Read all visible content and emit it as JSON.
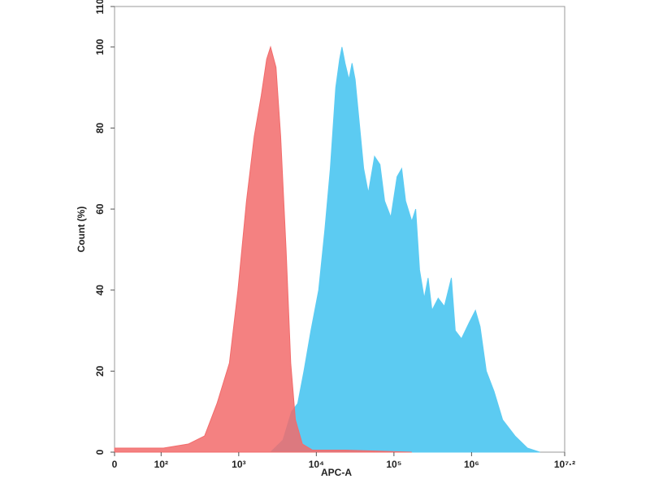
{
  "chart_data": {
    "type": "area",
    "xlabel": "APC-A",
    "ylabel": "Count (%)",
    "xlim": [
      1.4,
      7.2
    ],
    "xticks": [
      {
        "value": 1.4,
        "label": "0"
      },
      {
        "value": 2,
        "label": "10²"
      },
      {
        "value": 3,
        "label": "10³"
      },
      {
        "value": 4,
        "label": "10⁴"
      },
      {
        "value": 5,
        "label": "10⁵"
      },
      {
        "value": 6,
        "label": "10⁶"
      },
      {
        "value": 7.2,
        "label": "10⁷·²"
      }
    ],
    "ylim": [
      0,
      110
    ],
    "yticks": [
      0,
      20,
      40,
      60,
      80,
      100,
      110
    ],
    "series": [
      {
        "color": "#5ccbf2",
        "x": [
          3.41,
          3.57,
          3.68,
          3.76,
          3.84,
          3.93,
          4.03,
          4.11,
          4.18,
          4.25,
          4.3,
          4.33,
          4.37,
          4.42,
          4.46,
          4.5,
          4.56,
          4.61,
          4.67,
          4.75,
          4.82,
          4.88,
          4.96,
          5.04,
          5.1,
          5.15,
          5.23,
          5.28,
          5.33,
          5.39,
          5.44,
          5.49,
          5.57,
          5.65,
          5.74,
          5.79,
          5.87,
          5.97,
          6.05,
          6.11,
          6.19,
          6.29,
          6.4,
          6.56,
          6.72,
          6.88
        ],
        "values": [
          0,
          3,
          10,
          12,
          20,
          30,
          40,
          55,
          70,
          90,
          97,
          100,
          96,
          92,
          96,
          92,
          80,
          70,
          64,
          73,
          71,
          62,
          58,
          68,
          70,
          62,
          57,
          60,
          45,
          38,
          43,
          35,
          38,
          36,
          43,
          30,
          28,
          32,
          35,
          31,
          20,
          15,
          8,
          4,
          1,
          0
        ]
      },
      {
        "color": "#f26b6b",
        "x": [
          1.4,
          2.03,
          2.35,
          2.56,
          2.72,
          2.88,
          2.99,
          3.1,
          3.2,
          3.29,
          3.36,
          3.41,
          3.48,
          3.54,
          3.61,
          3.67,
          3.73,
          3.82,
          3.95,
          4.37,
          5.23
        ],
        "values": [
          1,
          1,
          2,
          4,
          12,
          22,
          40,
          62,
          78,
          88,
          97,
          100,
          95,
          78,
          50,
          22,
          8,
          2,
          0.5,
          0.5,
          0
        ]
      }
    ]
  }
}
